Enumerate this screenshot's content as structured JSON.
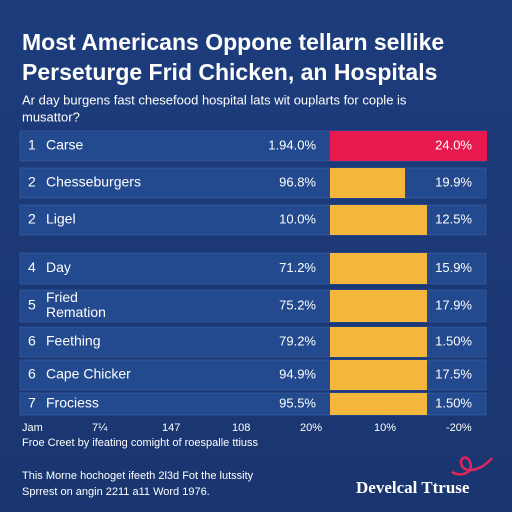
{
  "header": {
    "title": [
      "Most Americans Oppone tellarn sellike",
      "Perseturge Frid Chicken, an Hospitals"
    ],
    "subtitle": [
      "Ar day burgens fast chesefood hospital lats wit ouplarts for cople is",
      "musattor?"
    ]
  },
  "table": {
    "rows": [
      {
        "rank": "1",
        "label": [
          "Carse"
        ],
        "value": "1.94.0%",
        "share": "24.0%"
      },
      {
        "rank": "2",
        "label": [
          "Chesseburgers"
        ],
        "value": "96.8%",
        "share": "19.9%"
      },
      {
        "rank": "2",
        "label": [
          "Ligel"
        ],
        "value": "10.0%",
        "share": "12.5%"
      },
      {
        "rank": "4",
        "label": [
          "Day"
        ],
        "value": "71.2%",
        "share": "15.9%"
      },
      {
        "rank": "5",
        "label": [
          "Fried",
          "Remation"
        ],
        "value": "75.2%",
        "share": "17.9%"
      },
      {
        "rank": "6",
        "label": [
          "Feething"
        ],
        "value": "79.2%",
        "share": "1.50%"
      },
      {
        "rank": "6",
        "label": [
          "Cape Chicker"
        ],
        "value": "94.9%",
        "share": "17.5%"
      },
      {
        "rank": "7",
        "label": [
          "Frociess"
        ],
        "value": "95.5%",
        "share": "1.50%"
      }
    ],
    "axis": [
      "Jam",
      "7¼",
      "147",
      "108",
      "20%",
      "10%",
      "-20%"
    ]
  },
  "footnote": "Froe Creet by ifeating comight of roespalle ttiuss",
  "footer": {
    "lines": [
      "This Morne hochoget ifeeth 2l3d Fot the lutssity",
      "Sprrest on angin 2211 a11 Word 1976."
    ],
    "logo": "Develcal Ttruse"
  }
}
